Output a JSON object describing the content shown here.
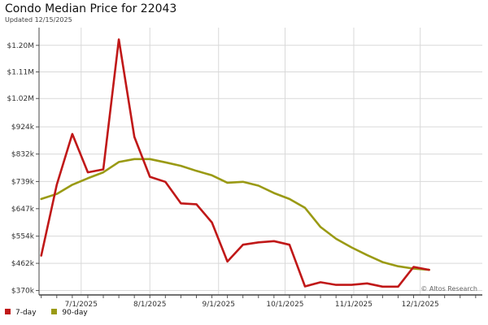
{
  "chart_data": {
    "type": "line",
    "title": "Condo Median Price for 22043",
    "subtitle": "Updated 12/15/2025",
    "y_tick_labels": [
      "$370k",
      "$462k",
      "$554k",
      "$647k",
      "$739k",
      "$832k",
      "$924k",
      "$1.02M",
      "$1.11M",
      "$1.20M"
    ],
    "y_ticks": [
      370000,
      462000,
      554000,
      647000,
      739000,
      832000,
      924000,
      1020000,
      1110000,
      1200000
    ],
    "ylim": [
      355000,
      1260000
    ],
    "x_tick_labels": [
      "7/1/2025",
      "8/1/2025",
      "9/1/2025",
      "10/1/2025",
      "11/1/2025",
      "12/1/2025"
    ],
    "x_ticks": [
      "2025-07-01",
      "2025-08-01",
      "2025-09-01",
      "2025-10-01",
      "2025-11-01",
      "2025-12-01"
    ],
    "xlim": [
      "2025-06-12",
      "2025-12-29"
    ],
    "grid": true,
    "legend_position": "bottom-left",
    "watermark": "© Altos Research",
    "series": [
      {
        "name": "7-day",
        "color": "#c01818",
        "x": [
          "2025-06-13",
          "2025-06-20",
          "2025-06-27",
          "2025-07-04",
          "2025-07-11",
          "2025-07-18",
          "2025-07-25",
          "2025-08-01",
          "2025-08-08",
          "2025-08-15",
          "2025-08-22",
          "2025-08-29",
          "2025-09-05",
          "2025-09-12",
          "2025-09-19",
          "2025-09-26",
          "2025-10-03",
          "2025-10-10",
          "2025-10-17",
          "2025-10-24",
          "2025-10-31",
          "2025-11-07",
          "2025-11-14",
          "2025-11-21",
          "2025-11-28",
          "2025-12-05",
          "2025-12-12"
        ],
        "values": [
          488000,
          728000,
          900000,
          770000,
          780000,
          1220000,
          890000,
          755000,
          738000,
          665000,
          662000,
          600000,
          468000,
          525000,
          533000,
          537000,
          525000,
          384000,
          398000,
          389000,
          389000,
          394000,
          383000,
          383000,
          450000,
          440000,
          null
        ]
      },
      {
        "name": "90-day",
        "color": "#9a9a14",
        "x": [
          "2025-06-13",
          "2025-06-20",
          "2025-06-27",
          "2025-07-04",
          "2025-07-11",
          "2025-07-18",
          "2025-07-25",
          "2025-08-01",
          "2025-08-08",
          "2025-08-15",
          "2025-08-22",
          "2025-08-29",
          "2025-09-05",
          "2025-09-12",
          "2025-09-19",
          "2025-09-26",
          "2025-10-03",
          "2025-10-10",
          "2025-10-17",
          "2025-10-24",
          "2025-10-31",
          "2025-11-07",
          "2025-11-14",
          "2025-11-21",
          "2025-11-28",
          "2025-12-05",
          "2025-12-12"
        ],
        "values": [
          680000,
          697000,
          728000,
          750000,
          770000,
          805000,
          815000,
          815000,
          804000,
          792000,
          775000,
          760000,
          735000,
          738000,
          725000,
          700000,
          680000,
          650000,
          585000,
          545000,
          516000,
          490000,
          466000,
          452000,
          444000,
          440000,
          null
        ]
      }
    ]
  }
}
